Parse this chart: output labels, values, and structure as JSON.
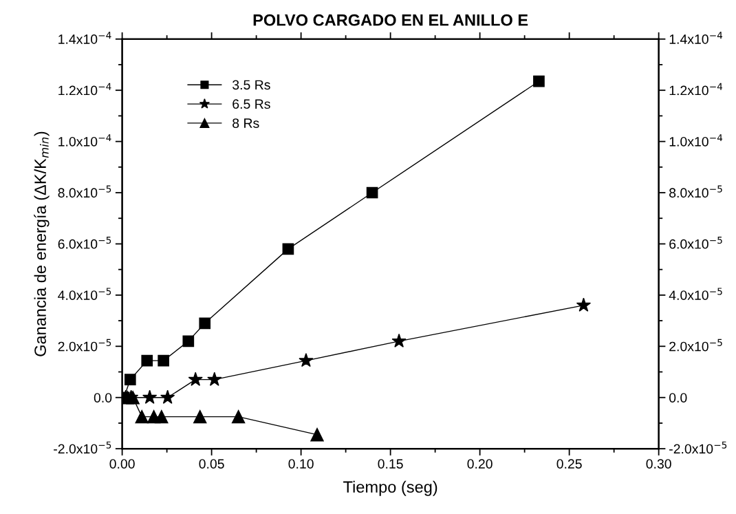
{
  "chart_data": {
    "type": "line",
    "title": "POLVO CARGADO EN EL ANILLO E",
    "xlabel": "Tiempo (seg)",
    "ylabel": "Ganancia de energía (ΔK/K$_{min}$)",
    "series": [
      {
        "name": "3.5 Rs",
        "color": "#000000",
        "marker": "square",
        "x": [
          0.001,
          0.0045,
          0.0139,
          0.0231,
          0.037,
          0.0462,
          0.0928,
          0.1398,
          0.233
        ],
        "values": [
          0.0,
          7e-06,
          1.44e-05,
          1.44e-05,
          2.2e-05,
          2.9e-05,
          5.8e-05,
          8e-05,
          0.0001235
        ]
      },
      {
        "name": "6.5 Rs",
        "color": "#000000",
        "marker": "star",
        "x": [
          0.002,
          0.005,
          0.0154,
          0.0254,
          0.041,
          0.0516,
          0.1028,
          0.1548,
          0.258
        ],
        "values": [
          0.0,
          0.0,
          0.0,
          0.0,
          7e-06,
          7e-06,
          1.44e-05,
          2.2e-05,
          3.6e-05
        ]
      },
      {
        "name": "8 Rs",
        "color": "#000000",
        "marker": "triangle",
        "x": [
          0.003,
          0.006,
          0.011,
          0.0177,
          0.022,
          0.0435,
          0.065,
          0.109
        ],
        "values": [
          0.0,
          0.0,
          -7.5e-06,
          -7.5e-06,
          -7.5e-06,
          -7.5e-06,
          -7.5e-06,
          -1.45e-05
        ]
      }
    ],
    "xlim": [
      0.0,
      0.3
    ],
    "xticks": [
      {
        "value": 0.0,
        "label": "0.00"
      },
      {
        "value": 0.05,
        "label": "0.05"
      },
      {
        "value": 0.1,
        "label": "0.10"
      },
      {
        "value": 0.15,
        "label": "0.15"
      },
      {
        "value": 0.2,
        "label": "0.20"
      },
      {
        "value": 0.25,
        "label": "0.25"
      },
      {
        "value": 0.3,
        "label": "0.30"
      }
    ],
    "ylim": [
      -2e-05,
      0.00014
    ],
    "yticks": [
      {
        "value": -2e-05,
        "label": "-2.0x10$^{−5}$"
      },
      {
        "value": 0.0,
        "label": "0.0"
      },
      {
        "value": 2e-05,
        "label": "2.0x10$^{−5}$"
      },
      {
        "value": 4e-05,
        "label": "4.0x10$^{−5}$"
      },
      {
        "value": 6e-05,
        "label": "6.0x10$^{−5}$"
      },
      {
        "value": 8e-05,
        "label": "8.0x10$^{−5}$"
      },
      {
        "value": 0.0001,
        "label": "1.0x10$^{−4}$"
      },
      {
        "value": 0.00012,
        "label": "1.2x10$^{−4}$"
      },
      {
        "value": 0.00014,
        "label": "1.4x10$^{−4}$"
      }
    ],
    "y2lim": [
      -2e-05,
      0.00014
    ],
    "y2ticks": [
      {
        "value": -2e-05,
        "label": "-2.0x10$^{−5}$"
      },
      {
        "value": 0.0,
        "label": "0.0"
      },
      {
        "value": 2e-05,
        "label": "2.0x10$^{−5}$"
      },
      {
        "value": 4e-05,
        "label": "4.0x10$^{−5}$"
      },
      {
        "value": 6e-05,
        "label": "6.0x10$^{−5}$"
      },
      {
        "value": 8e-05,
        "label": "8.0x10$^{−5}$"
      },
      {
        "value": 0.0001,
        "label": "1.0x10$^{−4}$"
      },
      {
        "value": 0.00012,
        "label": "1.2x10$^{−4}$"
      },
      {
        "value": 0.00014,
        "label": "1.4x10$^{−4}$"
      }
    ],
    "grid": false,
    "legend": "top left",
    "line_style": "solid"
  }
}
